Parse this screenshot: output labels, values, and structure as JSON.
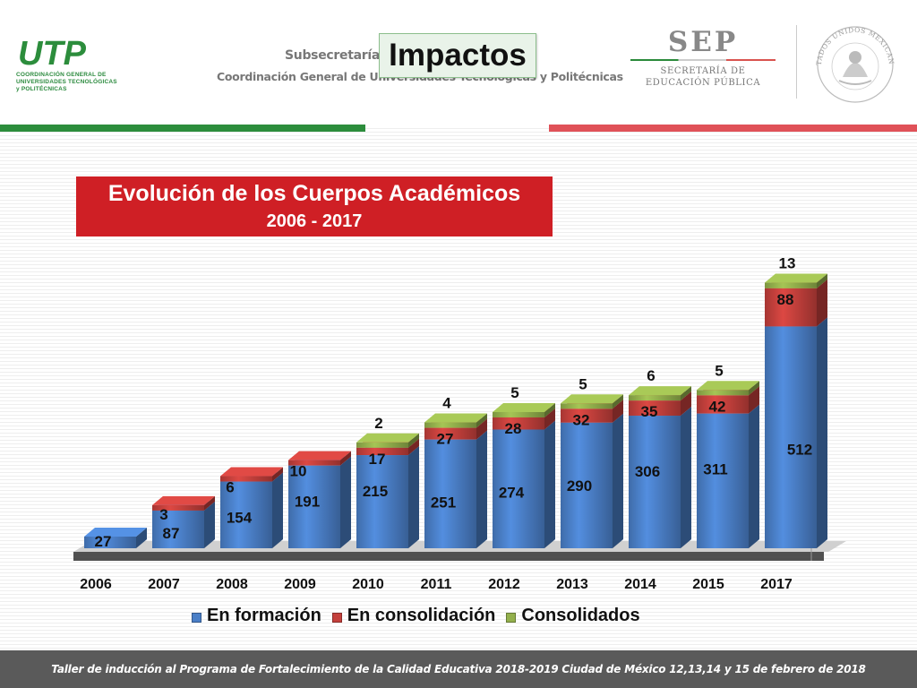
{
  "header": {
    "logo": {
      "text": "UTP",
      "caption": "COORDINACIÓN GENERAL DE UNIVERSIDADES TECNOLÓGICAS y POLITÉCNICAS"
    },
    "subtitle_line1": "Subsecretaría",
    "subtitle_line2": "Coordinación General de Universidades Tecnológicas y Politécnicas",
    "slide_title": "Impactos",
    "sep": {
      "big": "SEP",
      "line1": "SECRETARÍA DE",
      "line2": "EDUCACIÓN PÚBLICA"
    },
    "seal_text": "ESTADOS UNIDOS MEXICANOS",
    "colors": {
      "green": "#2c8d3c",
      "red": "#e05158"
    }
  },
  "chart_title": {
    "line1": "Evolución de los Cuerpos Académicos",
    "line2": "2006 - 2017"
  },
  "chart_data": {
    "type": "bar",
    "stacked": true,
    "three_d": true,
    "categories": [
      "2006",
      "2007",
      "2008",
      "2009",
      "2010",
      "2011",
      "2012",
      "2013",
      "2014",
      "2015",
      "2017"
    ],
    "series": [
      {
        "name": "En formación",
        "color": "#4a7fc7",
        "values": [
          27,
          87,
          154,
          191,
          215,
          251,
          274,
          290,
          306,
          311,
          512
        ]
      },
      {
        "name": "En consolidación",
        "color": "#c4403c",
        "values": [
          0,
          3,
          6,
          10,
          17,
          27,
          28,
          32,
          35,
          42,
          88
        ]
      },
      {
        "name": "Consolidados",
        "color": "#93b04c",
        "values": [
          0,
          0,
          0,
          0,
          2,
          4,
          5,
          5,
          6,
          5,
          13
        ]
      }
    ],
    "legend": "bottom",
    "title_bg": "#cf1f25"
  },
  "footer": {
    "text": "Taller de inducción al Programa de Fortalecimiento de la Calidad Educativa 2018-2019 Ciudad de México 12,13,14 y 15 de febrero de 2018"
  }
}
